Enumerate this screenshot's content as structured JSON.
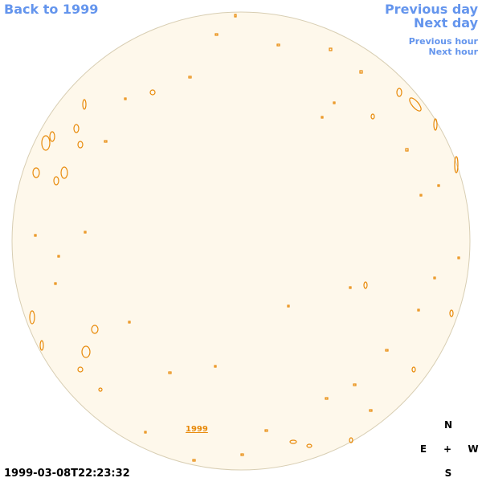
{
  "nav": {
    "back": "Back to 1999",
    "previous_day": "Previous day",
    "next_day": "Next day",
    "previous_hour": "Previous hour",
    "next_hour": "Next hour"
  },
  "disk_link": "1999",
  "timestamp": "1999-03-08T22:23:32",
  "compass": {
    "north": "N",
    "east": "E",
    "center": "+",
    "west": "W",
    "south": "S"
  }
}
